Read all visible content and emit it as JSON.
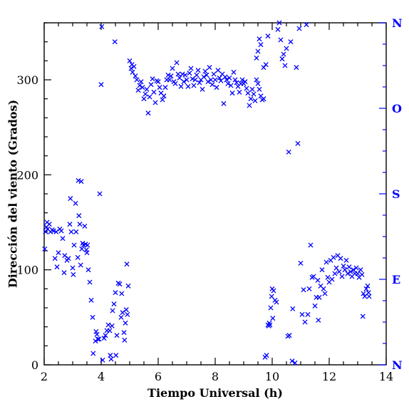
{
  "chart_data": {
    "type": "scatter",
    "xlabel": "Tiempo Universal (h)",
    "ylabel": "Dirección del viento (Grados)",
    "xlim": [
      2,
      14
    ],
    "ylim": [
      0,
      360
    ],
    "x_ticks": [
      "2",
      "4",
      "6",
      "8",
      "10",
      "12",
      "14"
    ],
    "y_ticks": [
      "0",
      "100",
      "200",
      "300"
    ],
    "right_axis_labels": [
      {
        "value": 0,
        "label": "N"
      },
      {
        "value": 90,
        "label": "E"
      },
      {
        "value": 180,
        "label": "S"
      },
      {
        "value": 270,
        "label": "O"
      },
      {
        "value": 360,
        "label": "N"
      }
    ],
    "marker": "x",
    "color": "#0000ff",
    "grid": false,
    "series": [
      {
        "points": [
          [
            2.02,
            122
          ],
          [
            2.05,
            140
          ],
          [
            2.08,
            145
          ],
          [
            2.1,
            150
          ],
          [
            2.12,
            143
          ],
          [
            2.18,
            148
          ],
          [
            2.22,
            140
          ],
          [
            2.28,
            142
          ],
          [
            2.33,
            141
          ],
          [
            2.38,
            112
          ],
          [
            2.42,
            140
          ],
          [
            2.45,
            103
          ],
          [
            2.5,
            118
          ],
          [
            2.55,
            143
          ],
          [
            2.6,
            141
          ],
          [
            2.65,
            133
          ],
          [
            2.7,
            97
          ],
          [
            2.72,
            115
          ],
          [
            2.8,
            110
          ],
          [
            2.85,
            112
          ],
          [
            2.9,
            148
          ],
          [
            2.92,
            175
          ],
          [
            2.95,
            140
          ],
          [
            3.0,
            102
          ],
          [
            3.02,
            95
          ],
          [
            3.05,
            126
          ],
          [
            3.1,
            170
          ],
          [
            3.12,
            140
          ],
          [
            3.18,
            113
          ],
          [
            3.2,
            194
          ],
          [
            3.22,
            157
          ],
          [
            3.25,
            148
          ],
          [
            3.28,
            105
          ],
          [
            3.3,
            193
          ],
          [
            3.32,
            122
          ],
          [
            3.35,
            128
          ],
          [
            3.38,
            126
          ],
          [
            3.42,
            146
          ],
          [
            3.45,
            127
          ],
          [
            3.48,
            121
          ],
          [
            3.5,
            118
          ],
          [
            3.52,
            126
          ],
          [
            3.55,
            100
          ],
          [
            3.6,
            87
          ],
          [
            3.65,
            68
          ],
          [
            3.7,
            50
          ],
          [
            3.72,
            12
          ],
          [
            3.8,
            25
          ],
          [
            3.82,
            35
          ],
          [
            3.85,
            32
          ],
          [
            3.88,
            27
          ],
          [
            3.92,
            27
          ],
          [
            3.95,
            180
          ],
          [
            4.0,
            295
          ],
          [
            4.02,
            356
          ],
          [
            4.05,
            5
          ],
          [
            4.1,
            28
          ],
          [
            4.15,
            31
          ],
          [
            4.2,
            36
          ],
          [
            4.25,
            42
          ],
          [
            4.3,
            36
          ],
          [
            4.32,
            10
          ],
          [
            4.35,
            6
          ],
          [
            4.38,
            41
          ],
          [
            4.4,
            57
          ],
          [
            4.45,
            64
          ],
          [
            4.5,
            76
          ],
          [
            4.52,
            10
          ],
          [
            4.55,
            31
          ],
          [
            4.6,
            86
          ],
          [
            4.65,
            85
          ],
          [
            4.7,
            50
          ],
          [
            4.72,
            75
          ],
          [
            4.75,
            55
          ],
          [
            4.8,
            34
          ],
          [
            4.82,
            26
          ],
          [
            4.85,
            44
          ],
          [
            4.88,
            58
          ],
          [
            4.9,
            106
          ],
          [
            4.92,
            53
          ],
          [
            4.95,
            83
          ],
          [
            4.48,
            340
          ],
          [
            5.0,
            320
          ],
          [
            5.05,
            312
          ],
          [
            5.08,
            316
          ],
          [
            5.1,
            308
          ],
          [
            5.15,
            314
          ],
          [
            5.2,
            304
          ],
          [
            5.25,
            300
          ],
          [
            5.3,
            289
          ],
          [
            5.35,
            294
          ],
          [
            5.4,
            298
          ],
          [
            5.45,
            292
          ],
          [
            5.5,
            280
          ],
          [
            5.55,
            285
          ],
          [
            5.6,
            290
          ],
          [
            5.65,
            265
          ],
          [
            5.7,
            282
          ],
          [
            5.75,
            295
          ],
          [
            5.8,
            301
          ],
          [
            5.85,
            287
          ],
          [
            5.9,
            276
          ],
          [
            5.95,
            299
          ],
          [
            6.0,
            298
          ],
          [
            6.05,
            292
          ],
          [
            6.1,
            286
          ],
          [
            6.15,
            279
          ],
          [
            6.2,
            283
          ],
          [
            6.25,
            292
          ],
          [
            6.3,
            300
          ],
          [
            6.35,
            305
          ],
          [
            6.4,
            300
          ],
          [
            6.45,
            304
          ],
          [
            6.5,
            312
          ],
          [
            6.55,
            298
          ],
          [
            6.6,
            296
          ],
          [
            6.65,
            318
          ],
          [
            6.7,
            306
          ],
          [
            6.75,
            302
          ],
          [
            6.8,
            293
          ],
          [
            6.85,
            306
          ],
          [
            6.9,
            298
          ],
          [
            6.95,
            305
          ],
          [
            7.0,
            300
          ],
          [
            7.05,
            293
          ],
          [
            7.1,
            307
          ],
          [
            7.15,
            312
          ],
          [
            7.2,
            301
          ],
          [
            7.25,
            294
          ],
          [
            7.3,
            300
          ],
          [
            7.35,
            305
          ],
          [
            7.4,
            310
          ],
          [
            7.45,
            297
          ],
          [
            7.5,
            300
          ],
          [
            7.55,
            290
          ],
          [
            7.6,
            303
          ],
          [
            7.65,
            309
          ],
          [
            7.7,
            305
          ],
          [
            7.75,
            298
          ],
          [
            7.8,
            313
          ],
          [
            7.85,
            300
          ],
          [
            7.9,
            295
          ],
          [
            7.95,
            306
          ],
          [
            8.0,
            300
          ],
          [
            8.05,
            292
          ],
          [
            8.1,
            310
          ],
          [
            8.15,
            302
          ],
          [
            8.2,
            299
          ],
          [
            8.25,
            306
          ],
          [
            8.3,
            275
          ],
          [
            8.35,
            303
          ],
          [
            8.4,
            300
          ],
          [
            8.45,
            296
          ],
          [
            8.5,
            302
          ],
          [
            8.55,
            294
          ],
          [
            8.6,
            286
          ],
          [
            8.65,
            308
          ],
          [
            8.7,
            300
          ],
          [
            8.75,
            297
          ],
          [
            8.8,
            293
          ],
          [
            8.85,
            287
          ],
          [
            8.9,
            296
          ],
          [
            8.95,
            300
          ],
          [
            9.0,
            296
          ],
          [
            9.05,
            298
          ],
          [
            9.1,
            291
          ],
          [
            9.15,
            286
          ],
          [
            9.2,
            273
          ],
          [
            9.25,
            280
          ],
          [
            9.3,
            290
          ],
          [
            9.35,
            285
          ],
          [
            9.4,
            278
          ],
          [
            9.45,
            300
          ],
          [
            9.5,
            296
          ],
          [
            9.55,
            290
          ],
          [
            9.6,
            283
          ],
          [
            9.65,
            279
          ],
          [
            9.7,
            280
          ],
          [
            9.45,
            323
          ],
          [
            9.5,
            330
          ],
          [
            9.55,
            343
          ],
          [
            9.6,
            337
          ],
          [
            9.7,
            313
          ],
          [
            9.78,
            316
          ],
          [
            9.85,
            346
          ],
          [
            9.75,
            8
          ],
          [
            9.8,
            10
          ],
          [
            9.85,
            42
          ],
          [
            9.88,
            41
          ],
          [
            9.9,
            44
          ],
          [
            9.92,
            42
          ],
          [
            9.95,
            60
          ],
          [
            9.98,
            72
          ],
          [
            10.0,
            80
          ],
          [
            10.02,
            49
          ],
          [
            10.05,
            78
          ],
          [
            10.1,
            68
          ],
          [
            10.15,
            66
          ],
          [
            10.2,
            353
          ],
          [
            10.25,
            360
          ],
          [
            10.3,
            342
          ],
          [
            10.35,
            322
          ],
          [
            10.4,
            327
          ],
          [
            10.45,
            315
          ],
          [
            10.5,
            333
          ],
          [
            10.55,
            30
          ],
          [
            10.58,
            224
          ],
          [
            10.6,
            31
          ],
          [
            10.65,
            340
          ],
          [
            10.7,
            4
          ],
          [
            10.72,
            59
          ],
          [
            10.8,
            2
          ],
          [
            10.85,
            313
          ],
          [
            10.9,
            233
          ],
          [
            10.95,
            354
          ],
          [
            11.0,
            107
          ],
          [
            11.05,
            53
          ],
          [
            11.1,
            79
          ],
          [
            11.15,
            45
          ],
          [
            11.2,
            358
          ],
          [
            11.25,
            53
          ],
          [
            11.3,
            80
          ],
          [
            11.35,
            126
          ],
          [
            11.4,
            92
          ],
          [
            11.45,
            93
          ],
          [
            11.5,
            62
          ],
          [
            11.55,
            71
          ],
          [
            11.6,
            89
          ],
          [
            11.62,
            47
          ],
          [
            11.65,
            71
          ],
          [
            11.7,
            83
          ],
          [
            11.75,
            100
          ],
          [
            11.8,
            80
          ],
          [
            11.85,
            75
          ],
          [
            11.9,
            108
          ],
          [
            11.95,
            92
          ],
          [
            12.0,
            87
          ],
          [
            12.05,
            110
          ],
          [
            12.1,
            90
          ],
          [
            12.15,
            113
          ],
          [
            12.2,
            96
          ],
          [
            12.25,
            102
          ],
          [
            12.3,
            115
          ],
          [
            12.35,
            98
          ],
          [
            12.4,
            112
          ],
          [
            12.45,
            93
          ],
          [
            12.5,
            104
          ],
          [
            12.55,
            100
          ],
          [
            12.6,
            110
          ],
          [
            12.65,
            96
          ],
          [
            12.7,
            103
          ],
          [
            12.75,
            98
          ],
          [
            12.8,
            93
          ],
          [
            12.85,
            100
          ],
          [
            12.9,
            96
          ],
          [
            12.95,
            102
          ],
          [
            13.0,
            96
          ],
          [
            13.05,
            92
          ],
          [
            13.1,
            100
          ],
          [
            13.15,
            95
          ],
          [
            13.18,
            51
          ],
          [
            13.2,
            75
          ],
          [
            13.25,
            72
          ],
          [
            13.3,
            80
          ],
          [
            13.35,
            83
          ],
          [
            13.38,
            76
          ],
          [
            13.4,
            72
          ]
        ]
      }
    ]
  }
}
